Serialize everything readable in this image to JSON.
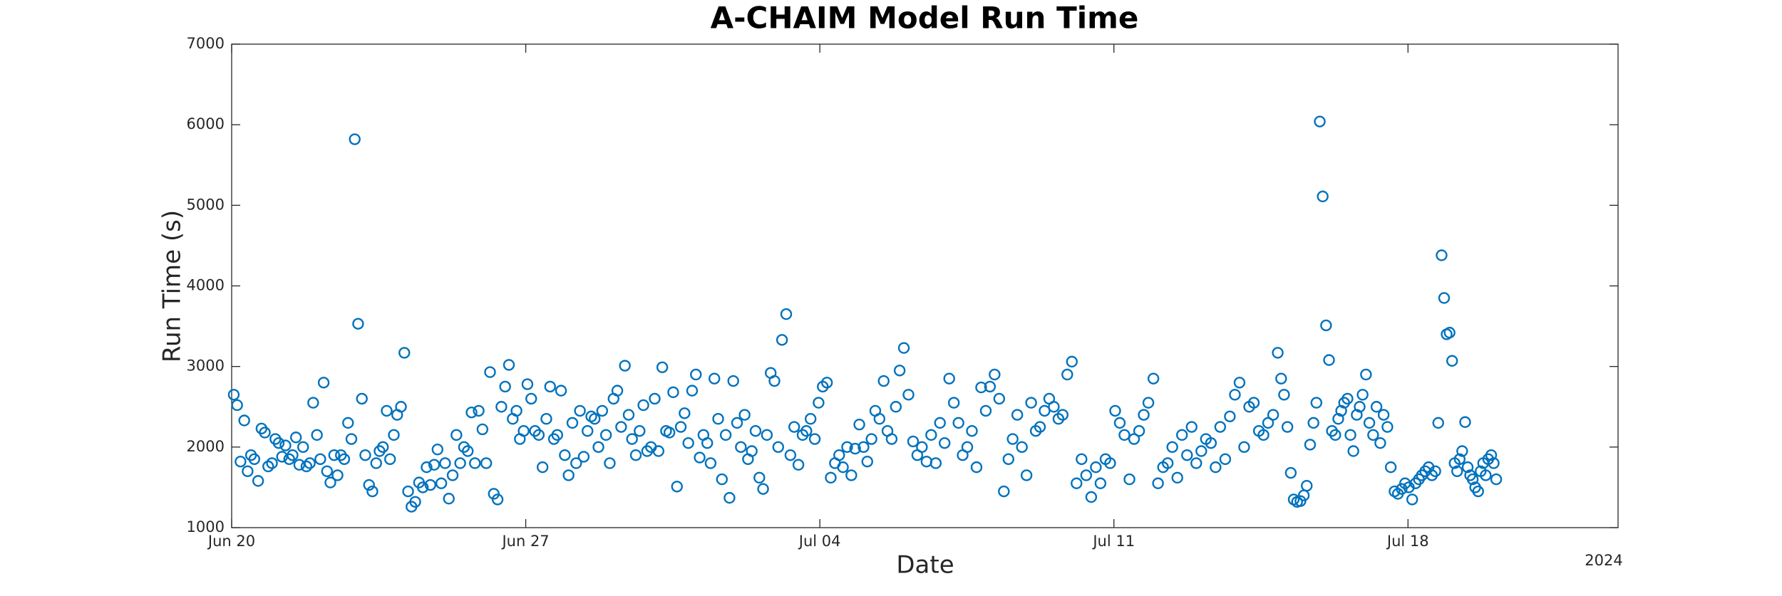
{
  "chart_data": {
    "type": "scatter",
    "title": "A-CHAIM Model Run Time",
    "xlabel": "Date",
    "ylabel": "Run Time (s)",
    "x_secondary_label": "2024",
    "color": "#0072bd",
    "grid": false,
    "xlim": [
      0,
      33
    ],
    "ylim": [
      1000,
      7000
    ],
    "xticks": [
      {
        "value": 0,
        "label": "Jun 20"
      },
      {
        "value": 7,
        "label": "Jun 27"
      },
      {
        "value": 14,
        "label": "Jul 04"
      },
      {
        "value": 21,
        "label": "Jul 11"
      },
      {
        "value": 28,
        "label": "Jul 18"
      }
    ],
    "yticks": [
      1000,
      2000,
      3000,
      4000,
      5000,
      6000,
      7000
    ],
    "x": [
      0.05,
      0.13,
      0.21,
      0.3,
      0.38,
      0.46,
      0.54,
      0.63,
      0.71,
      0.79,
      0.87,
      0.96,
      1.04,
      1.12,
      1.2,
      1.28,
      1.37,
      1.45,
      1.53,
      1.61,
      1.7,
      1.78,
      1.86,
      1.94,
      2.03,
      2.11,
      2.19,
      2.27,
      2.35,
      2.44,
      2.52,
      2.6,
      2.68,
      2.77,
      2.85,
      2.93,
      3.01,
      3.1,
      3.18,
      3.27,
      3.35,
      3.44,
      3.52,
      3.6,
      3.69,
      3.77,
      3.86,
      3.94,
      4.03,
      4.11,
      4.2,
      4.28,
      4.37,
      4.46,
      4.55,
      4.64,
      4.73,
      4.82,
      4.9,
      4.99,
      5.08,
      5.17,
      5.26,
      5.35,
      5.44,
      5.53,
      5.62,
      5.71,
      5.79,
      5.88,
      5.97,
      6.06,
      6.15,
      6.24,
      6.33,
      6.42,
      6.51,
      6.6,
      6.69,
      6.78,
      6.86,
      6.95,
      7.04,
      7.13,
      7.22,
      7.31,
      7.4,
      7.49,
      7.58,
      7.67,
      7.75,
      7.84,
      7.93,
      8.02,
      8.11,
      8.2,
      8.29,
      8.38,
      8.47,
      8.56,
      8.64,
      8.73,
      8.82,
      8.91,
      9.0,
      9.09,
      9.18,
      9.27,
      9.36,
      9.45,
      9.53,
      9.62,
      9.71,
      9.8,
      9.89,
      9.98,
      10.07,
      10.16,
      10.25,
      10.34,
      10.42,
      10.51,
      10.6,
      10.69,
      10.78,
      10.87,
      10.96,
      11.05,
      11.14,
      11.23,
      11.32,
      11.4,
      11.49,
      11.58,
      11.67,
      11.76,
      11.85,
      11.94,
      12.03,
      12.12,
      12.21,
      12.29,
      12.38,
      12.47,
      12.56,
      12.65,
      12.74,
      12.83,
      12.92,
      13.01,
      13.1,
      13.2,
      13.3,
      13.39,
      13.49,
      13.59,
      13.68,
      13.78,
      13.88,
      13.97,
      14.07,
      14.17,
      14.26,
      14.36,
      14.46,
      14.55,
      14.65,
      14.75,
      14.84,
      14.94,
      15.04,
      15.13,
      15.23,
      15.32,
      15.42,
      15.52,
      15.61,
      15.71,
      15.81,
      15.9,
      16.0,
      16.11,
      16.22,
      16.32,
      16.43,
      16.54,
      16.65,
      16.76,
      16.86,
      16.97,
      17.08,
      17.19,
      17.3,
      17.4,
      17.51,
      17.62,
      17.73,
      17.84,
      17.95,
      18.05,
      18.16,
      18.27,
      18.38,
      18.49,
      18.59,
      18.7,
      18.81,
      18.92,
      19.03,
      19.14,
      19.24,
      19.35,
      19.46,
      19.57,
      19.68,
      19.78,
      19.89,
      20.0,
      20.11,
      20.23,
      20.34,
      20.46,
      20.57,
      20.68,
      20.8,
      20.91,
      21.03,
      21.14,
      21.25,
      21.37,
      21.48,
      21.6,
      21.71,
      21.82,
      21.94,
      22.05,
      22.17,
      22.28,
      22.39,
      22.51,
      22.62,
      22.74,
      22.85,
      22.96,
      23.08,
      23.19,
      23.31,
      23.42,
      23.53,
      23.65,
      23.76,
      23.88,
      23.99,
      24.1,
      24.22,
      24.33,
      24.45,
      24.56,
      24.67,
      24.79,
      24.9,
      24.98,
      25.05,
      25.13,
      25.21,
      25.28,
      25.36,
      25.44,
      25.52,
      25.59,
      25.67,
      25.75,
      25.82,
      25.9,
      25.97,
      26.05,
      26.12,
      26.19,
      26.27,
      26.34,
      26.41,
      26.48,
      26.56,
      26.63,
      26.7,
      26.78,
      26.85,
      26.92,
      27.0,
      27.08,
      27.17,
      27.25,
      27.34,
      27.42,
      27.51,
      27.59,
      27.68,
      27.76,
      27.85,
      27.93,
      28.02,
      28.1,
      28.18,
      28.26,
      28.33,
      28.41,
      28.49,
      28.57,
      28.65,
      28.72,
      28.8,
      28.86,
      28.92,
      28.99,
      29.05,
      29.11,
      29.17,
      29.23,
      29.29,
      29.36,
      29.42,
      29.48,
      29.54,
      29.6,
      29.67,
      29.73,
      29.79,
      29.85,
      29.91,
      29.98,
      30.04,
      30.1
    ],
    "values": [
      2650,
      2520,
      1820,
      2330,
      1700,
      1900,
      1850,
      1580,
      2230,
      2180,
      1760,
      1800,
      2100,
      2050,
      1880,
      2020,
      1850,
      1900,
      2120,
      1780,
      2000,
      1760,
      1800,
      2550,
      2150,
      1850,
      2800,
      1700,
      1560,
      1900,
      1650,
      1900,
      1850,
      2300,
      2100,
      5820,
      3530,
      2600,
      1900,
      1530,
      1450,
      1800,
      1950,
      2000,
      2450,
      1850,
      2150,
      2400,
      2500,
      3170,
      1450,
      1260,
      1320,
      1560,
      1500,
      1750,
      1530,
      1780,
      1970,
      1550,
      1800,
      1360,
      1650,
      2150,
      1800,
      2000,
      1950,
      2430,
      1800,
      2450,
      2220,
      1800,
      2930,
      1420,
      1350,
      2500,
      2750,
      3020,
      2350,
      2450,
      2100,
      2200,
      2780,
      2600,
      2200,
      2150,
      1750,
      2350,
      2750,
      2100,
      2150,
      2700,
      1900,
      1650,
      2300,
      1800,
      2450,
      1880,
      2200,
      2380,
      2350,
      2000,
      2450,
      2150,
      1800,
      2600,
      2700,
      2250,
      3010,
      2400,
      2100,
      1900,
      2200,
      2520,
      1950,
      2000,
      2600,
      1950,
      2990,
      2200,
      2180,
      2680,
      1510,
      2250,
      2420,
      2050,
      2700,
      2900,
      1870,
      2150,
      2050,
      1800,
      2850,
      2350,
      1600,
      2150,
      1370,
      2820,
      2300,
      2000,
      2400,
      1850,
      1950,
      2200,
      1620,
      1480,
      2150,
      2920,
      2820,
      2000,
      3330,
      3650,
      1900,
      2250,
      1780,
      2150,
      2200,
      2350,
      2100,
      2550,
      2750,
      2800,
      1620,
      1800,
      1900,
      1750,
      2000,
      1650,
      1980,
      2280,
      2000,
      1820,
      2100,
      2450,
      2350,
      2820,
      2200,
      2100,
      2500,
      2950,
      3230,
      2650,
      2070,
      1900,
      2000,
      1820,
      2150,
      1800,
      2300,
      2050,
      2850,
      2550,
      2300,
      1900,
      2000,
      2200,
      1750,
      2740,
      2450,
      2750,
      2900,
      2600,
      1450,
      1850,
      2100,
      2400,
      2000,
      1650,
      2550,
      2200,
      2250,
      2450,
      2600,
      2500,
      2350,
      2400,
      2900,
      3060,
      1550,
      1850,
      1650,
      1380,
      1750,
      1550,
      1850,
      1800,
      2450,
      2300,
      2150,
      1600,
      2100,
      2200,
      2400,
      2550,
      2850,
      1550,
      1750,
      1800,
      2000,
      1620,
      2150,
      1900,
      2250,
      1800,
      1950,
      2100,
      2050,
      1750,
      2250,
      1850,
      2380,
      2650,
      2800,
      2000,
      2500,
      2550,
      2200,
      2150,
      2300,
      2400,
      3170,
      2850,
      2650,
      2250,
      1680,
      1350,
      1320,
      1330,
      1400,
      1520,
      2030,
      2300,
      2550,
      6040,
      5110,
      3510,
      3080,
      2200,
      2150,
      2350,
      2450,
      2550,
      2600,
      2150,
      1950,
      2400,
      2500,
      2650,
      2900,
      2300,
      2150,
      2500,
      2050,
      2400,
      2250,
      1750,
      1450,
      1420,
      1480,
      1550,
      1500,
      1350,
      1550,
      1600,
      1650,
      1700,
      1750,
      1650,
      1700,
      2300,
      4380,
      3850,
      3400,
      3420,
      3070,
      1800,
      1700,
      1850,
      1950,
      2310,
      1750,
      1650,
      1600,
      1500,
      1450,
      1700,
      1800,
      1650,
      1850,
      1900,
      1800,
      1600
    ]
  }
}
